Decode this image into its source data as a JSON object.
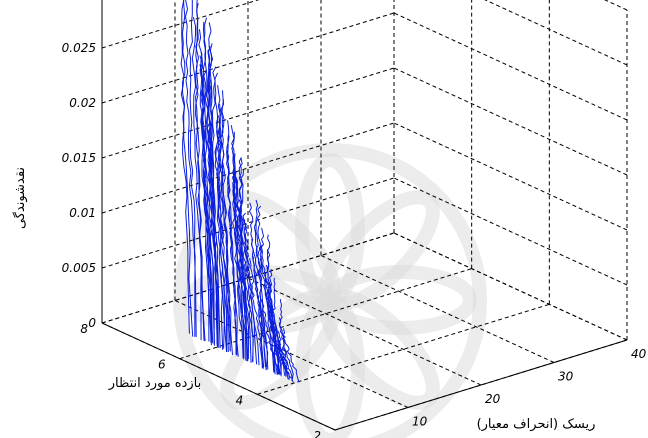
{
  "chart_data": {
    "type": "line3d",
    "title": "",
    "xlabel": "ریسک (انحراف معیار)",
    "ylabel": "بازده مورد انتظار",
    "zlabel": "نقدشوندگی",
    "xlim": [
      0,
      40
    ],
    "ylim": [
      2,
      8
    ],
    "zlim": [
      0,
      0.03
    ],
    "x_ticks": [
      "0",
      "10",
      "20",
      "30",
      "40"
    ],
    "y_ticks": [
      "2",
      "4",
      "6",
      "8"
    ],
    "z_ticks": [
      "0",
      "0.005",
      "0.01",
      "0.015",
      "0.02",
      "0.025",
      "0.03"
    ],
    "grid": true,
    "series_color": "#0a1edc",
    "num_curves": 75,
    "curve_shape": {
      "x_range": [
        5,
        8.5
      ],
      "y_range": [
        3.5,
        7.5
      ],
      "z_start": 0.0,
      "z_end_range": [
        0.001,
        0.0295
      ]
    },
    "watermark": "decorative floral seal (faded)"
  }
}
